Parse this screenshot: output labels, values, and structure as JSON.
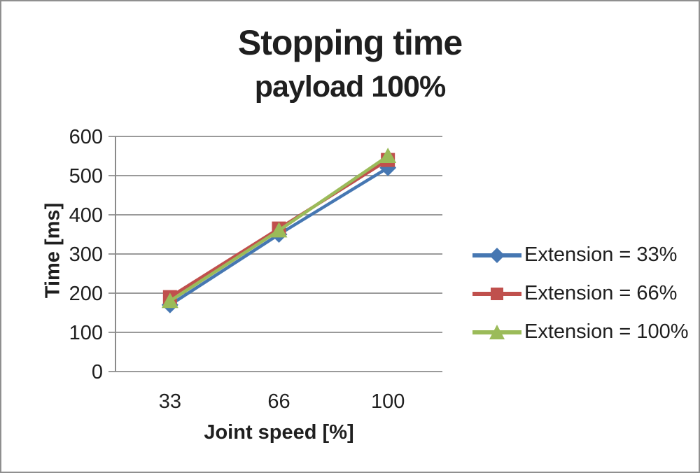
{
  "chart_data": {
    "type": "line",
    "title": "Stopping time",
    "subtitle": "payload 100%",
    "xlabel": "Joint speed [%]",
    "ylabel": "Time [ms]",
    "categories": [
      "33",
      "66",
      "100"
    ],
    "ylim": [
      0,
      600
    ],
    "ytick_step": 100,
    "yticks": [
      0,
      100,
      200,
      300,
      400,
      500,
      600
    ],
    "grid": "horizontal",
    "legend_position": "right",
    "grid_color": "#9a9a9a",
    "axis_color": "#8a8a8a",
    "text_color": "#1f1f1f",
    "series": [
      {
        "name": "Extension = 33%",
        "marker": "diamond",
        "color": "#4677b2",
        "values": [
          170,
          350,
          520
        ]
      },
      {
        "name": "Extension = 66%",
        "marker": "square",
        "color": "#c0504d",
        "values": [
          190,
          365,
          540
        ]
      },
      {
        "name": "Extension = 100%",
        "marker": "triangle",
        "color": "#9bbb59",
        "values": [
          180,
          360,
          550
        ]
      }
    ]
  }
}
